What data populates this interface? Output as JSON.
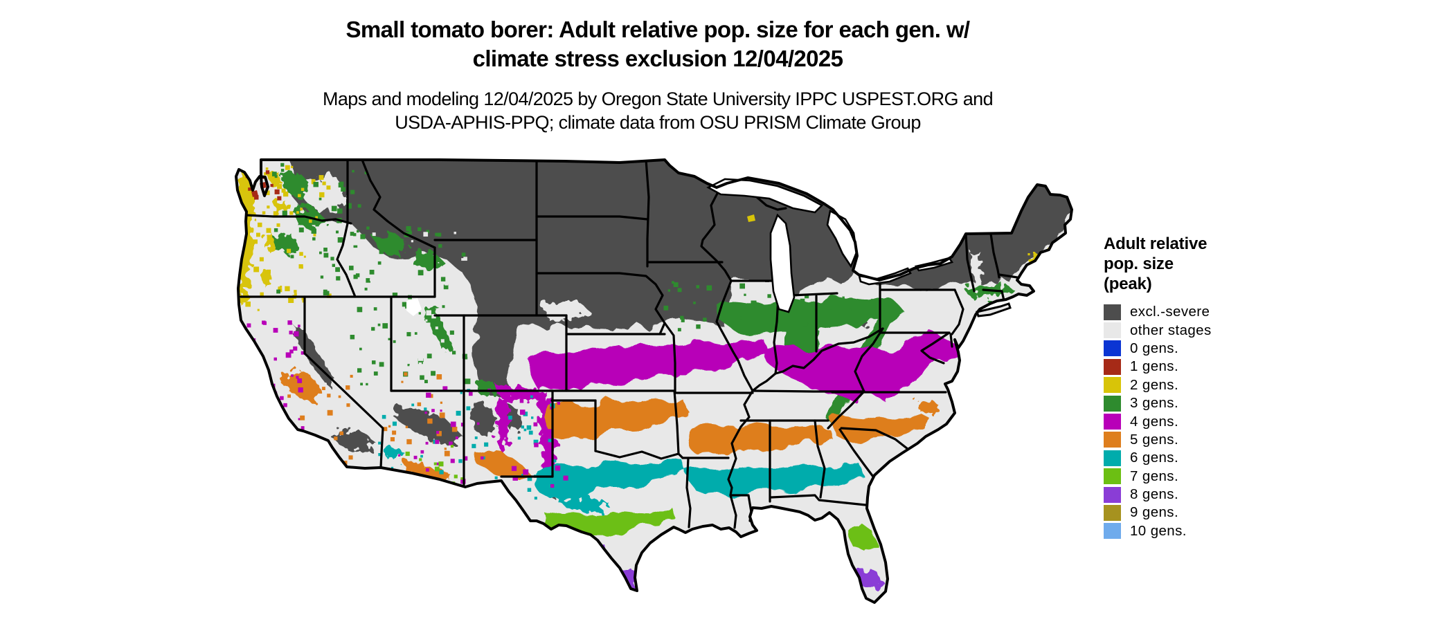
{
  "title": {
    "line1": "Small tomato borer: Adult relative pop. size for each gen. w/",
    "line2": "climate stress exclusion 12/04/2025"
  },
  "subtitle": {
    "line1": "Maps and modeling 12/04/2025 by Oregon State University IPPC USPEST.ORG and",
    "line2": "USDA-APHIS-PPQ; climate data from OSU PRISM Climate Group"
  },
  "legend": {
    "title_lines": [
      "Adult relative",
      "pop. size",
      "(peak)"
    ],
    "items": [
      {
        "label": "excl.-severe",
        "key": "excl",
        "color": "#4d4d4d"
      },
      {
        "label": "other stages",
        "key": "other",
        "color": "#e8e8e8"
      },
      {
        "label": "0 gens.",
        "key": "gen0",
        "color": "#0b35d3"
      },
      {
        "label": "1 gens.",
        "key": "gen1",
        "color": "#a62a17"
      },
      {
        "label": "2 gens.",
        "key": "gen2",
        "color": "#d8c408"
      },
      {
        "label": "3 gens.",
        "key": "gen3",
        "color": "#2e8b2e"
      },
      {
        "label": "4 gens.",
        "key": "gen4",
        "color": "#b800b8"
      },
      {
        "label": "5 gens.",
        "key": "gen5",
        "color": "#de7e1d"
      },
      {
        "label": "6 gens.",
        "key": "gen6",
        "color": "#00acac"
      },
      {
        "label": "7 gens.",
        "key": "gen7",
        "color": "#6cbf13"
      },
      {
        "label": "8 gens.",
        "key": "gen8",
        "color": "#8a3dd6"
      },
      {
        "label": "9 gens.",
        "key": "gen9",
        "color": "#a6921f"
      },
      {
        "label": "10 gens.",
        "key": "gen10",
        "color": "#6fabec"
      }
    ]
  },
  "colors": {
    "excl": "#4d4d4d",
    "other": "#e8e8e8",
    "gen0": "#0b35d3",
    "gen1": "#a62a17",
    "gen2": "#d8c408",
    "gen3": "#2e8b2e",
    "gen4": "#b800b8",
    "gen5": "#de7e1d",
    "gen6": "#00acac",
    "gen7": "#6cbf13",
    "gen8": "#8a3dd6",
    "gen9": "#a6921f",
    "gen10": "#6fabec",
    "map_border": "#000000",
    "water": "#ffffff"
  }
}
